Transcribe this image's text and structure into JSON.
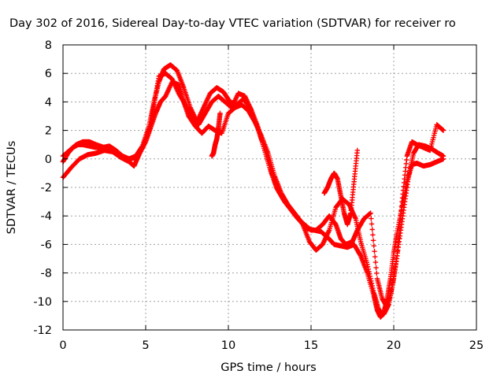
{
  "chart_data": {
    "type": "scatter",
    "title": "Day 302 of 2016, Sidereal Day-to-day VTEC variation (SDTVAR) for receiver ro",
    "xlabel": "GPS time / hours",
    "ylabel": "SDTVAR / TECUs",
    "xlim": [
      0,
      25
    ],
    "ylim": [
      -12,
      8
    ],
    "x_ticks": [
      0,
      5,
      10,
      15,
      20,
      25
    ],
    "x_tick_labels": [
      "0",
      "5",
      "10",
      "15",
      "20",
      "25"
    ],
    "y_ticks": [
      -12,
      -10,
      -8,
      -6,
      -4,
      -2,
      0,
      2,
      4,
      6,
      8
    ],
    "y_tick_labels": [
      "-12",
      "-10",
      "-8",
      "-6",
      "-4",
      "-2",
      "0",
      "2",
      "4",
      "6",
      "8"
    ],
    "grid": true,
    "legend": "none",
    "marker": "+",
    "series_color": "#ff0000",
    "series": [
      {
        "x": [
          0.0,
          0.5,
          1.0,
          1.5,
          2.0,
          2.5,
          3.0,
          3.5,
          4.0,
          4.3,
          4.6,
          5.0,
          5.3,
          5.6,
          5.9,
          6.2,
          6.6,
          7.0,
          7.3,
          7.6,
          8.0,
          8.4,
          8.8,
          9.2,
          9.6,
          10.0,
          10.4,
          10.8,
          11.2,
          11.6,
          12.0,
          12.4,
          12.8,
          13.2,
          13.6,
          14.0,
          14.4,
          14.8,
          15.2,
          15.6,
          16.0,
          16.4,
          16.8,
          17.2,
          17.6,
          18.0,
          18.4,
          18.8,
          19.0,
          19.2,
          19.4,
          19.6,
          19.8,
          20.0,
          20.2,
          20.5,
          20.8,
          21.1,
          21.4,
          21.8,
          22.2,
          22.6,
          23.0
        ],
        "y": [
          -1.3,
          -0.6,
          0.0,
          0.3,
          0.4,
          0.6,
          0.5,
          0.1,
          -0.2,
          -0.5,
          0.3,
          1.2,
          2.2,
          3.2,
          4.0,
          4.4,
          5.4,
          5.2,
          4.0,
          3.0,
          2.3,
          1.8,
          2.3,
          2.0,
          1.8,
          3.2,
          3.6,
          3.8,
          3.4,
          2.6,
          1.6,
          0.4,
          -1.2,
          -2.4,
          -3.2,
          -3.8,
          -4.4,
          -4.9,
          -5.0,
          -5.1,
          -5.5,
          -6.0,
          -6.1,
          -6.2,
          -6.0,
          -6.8,
          -8.0,
          -9.6,
          -10.6,
          -11.1,
          -10.8,
          -9.8,
          -8.4,
          -6.6,
          -5.2,
          -3.4,
          -1.6,
          -0.4,
          -0.3,
          -0.5,
          -0.4,
          -0.2,
          0.0
        ]
      },
      {
        "x": [
          0.0,
          0.4,
          0.8,
          1.2,
          1.6,
          2.0,
          2.5,
          3.0,
          3.5,
          4.0,
          4.4,
          4.8,
          5.2,
          5.5,
          5.8,
          6.1,
          6.5,
          6.9,
          7.3,
          7.7,
          8.1,
          8.5,
          8.9,
          9.3,
          9.7,
          10.1,
          10.5,
          10.9,
          11.3,
          11.7,
          12.1,
          12.5,
          12.9,
          13.3,
          13.7,
          14.1,
          14.5,
          14.9,
          15.3,
          15.7,
          16.1,
          16.5,
          16.9,
          17.3,
          17.7,
          18.0,
          18.4,
          18.8,
          19.1,
          19.4,
          19.7,
          20.0,
          20.3,
          20.6,
          20.9,
          21.2,
          21.5,
          21.9,
          22.3,
          22.7,
          23.0
        ],
        "y": [
          0.2,
          0.6,
          1.0,
          1.2,
          1.2,
          1.0,
          0.8,
          0.6,
          0.2,
          0.0,
          0.2,
          0.9,
          2.3,
          4.0,
          5.4,
          6.3,
          6.6,
          6.2,
          5.0,
          3.6,
          2.6,
          3.6,
          4.6,
          5.0,
          4.7,
          4.0,
          3.8,
          4.2,
          3.6,
          2.4,
          1.0,
          -0.6,
          -2.0,
          -2.8,
          -3.4,
          -4.0,
          -4.6,
          -5.8,
          -6.4,
          -6.0,
          -5.0,
          -3.4,
          -2.8,
          -3.2,
          -4.2,
          -5.8,
          -7.4,
          -9.4,
          -10.6,
          -10.9,
          -10.2,
          -8.4,
          -6.0,
          -3.6,
          -1.2,
          0.4,
          1.0,
          0.9,
          0.7,
          0.4,
          0.2
        ]
      },
      {
        "x": [
          0.0,
          0.3,
          0.6,
          0.9,
          1.2,
          1.6,
          2.0,
          2.4,
          2.8,
          3.2,
          3.6,
          4.0,
          4.4,
          4.8,
          5.2,
          5.5,
          5.8,
          6.2,
          6.6,
          7.0,
          7.4,
          7.8,
          8.2,
          8.6,
          9.0,
          9.4,
          9.8,
          10.2,
          10.6,
          11.0,
          11.4,
          11.8,
          12.2,
          12.6,
          13.0,
          13.4,
          13.8,
          14.2,
          14.6,
          15.0,
          15.3,
          15.7,
          16.1,
          16.5,
          16.8,
          17.1,
          17.5,
          17.8,
          18.2,
          18.6,
          19.0,
          19.3,
          19.6,
          19.9,
          20.2,
          20.5,
          20.8,
          21.1,
          21.4,
          21.8,
          22.2,
          22.6,
          23.0
        ],
        "y": [
          -0.2,
          0.4,
          0.8,
          1.0,
          1.0,
          0.9,
          0.8,
          0.8,
          0.9,
          0.6,
          0.2,
          0.0,
          0.1,
          0.8,
          2.0,
          3.8,
          5.8,
          6.0,
          5.6,
          4.6,
          3.8,
          2.8,
          2.4,
          3.2,
          4.0,
          4.4,
          4.0,
          3.6,
          4.6,
          4.4,
          3.4,
          2.2,
          0.6,
          -1.0,
          -2.2,
          -3.0,
          -3.6,
          -4.2,
          -4.6,
          -5.0,
          -5.0,
          -4.6,
          -4.0,
          -4.6,
          -5.6,
          -6.0,
          -5.8,
          -5.0,
          -4.2,
          -3.8,
          -8.4,
          -9.8,
          -10.4,
          -9.0,
          -6.8,
          -3.0,
          0.2,
          1.2,
          1.0,
          0.8,
          0.6,
          2.4,
          2.0
        ]
      },
      {
        "x": [
          9.0,
          9.1,
          9.2,
          9.3,
          9.4,
          9.5,
          15.8,
          16.0,
          16.2,
          16.4,
          16.6,
          16.8,
          17.0,
          17.2,
          17.4,
          17.6,
          17.8
        ],
        "y": [
          0.2,
          0.4,
          1.0,
          1.4,
          2.2,
          3.2,
          -2.4,
          -2.0,
          -1.4,
          -1.0,
          -1.4,
          -2.6,
          -3.8,
          -4.6,
          -3.8,
          -1.6,
          0.6
        ]
      }
    ]
  }
}
